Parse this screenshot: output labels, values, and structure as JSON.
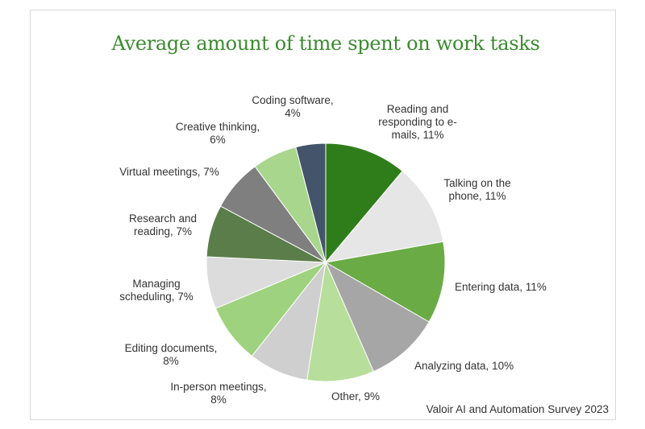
{
  "chart_data": {
    "type": "pie",
    "title": "Average amount of time spent on work tasks",
    "source": "Valoir AI and Automation Survey 2023",
    "slices": [
      {
        "label_lines": [
          "Reading and",
          "responding to e-",
          "mails, 11%"
        ],
        "value": 11,
        "color": "#2e7d1a"
      },
      {
        "label_lines": [
          "Talking on the",
          "phone, 11%"
        ],
        "value": 11,
        "color": "#e6e6e6"
      },
      {
        "label_lines": [
          "Entering data, 11%"
        ],
        "value": 11,
        "color": "#6aab45"
      },
      {
        "label_lines": [
          "Analyzing data, 10%"
        ],
        "value": 10,
        "color": "#a6a6a6"
      },
      {
        "label_lines": [
          "Other, 9%"
        ],
        "value": 9,
        "color": "#b7de9a"
      },
      {
        "label_lines": [
          "In-person meetings,",
          "8%"
        ],
        "value": 8,
        "color": "#cfcfcf"
      },
      {
        "label_lines": [
          "Editing documents,",
          "8%"
        ],
        "value": 8,
        "color": "#9fd27f"
      },
      {
        "label_lines": [
          "Managing",
          "scheduling, 7%"
        ],
        "value": 7,
        "color": "#dcdcdc"
      },
      {
        "label_lines": [
          "Research and",
          "reading, 7%"
        ],
        "value": 7,
        "color": "#5b7d4a"
      },
      {
        "label_lines": [
          "Virtual meetings, 7%"
        ],
        "value": 7,
        "color": "#7f7f7f"
      },
      {
        "label_lines": [
          "Creative thinking,",
          "6%"
        ],
        "value": 6,
        "color": "#a8d68c"
      },
      {
        "label_lines": [
          "Coding software,",
          "4%"
        ],
        "value": 4,
        "color": "#44546a"
      }
    ]
  }
}
